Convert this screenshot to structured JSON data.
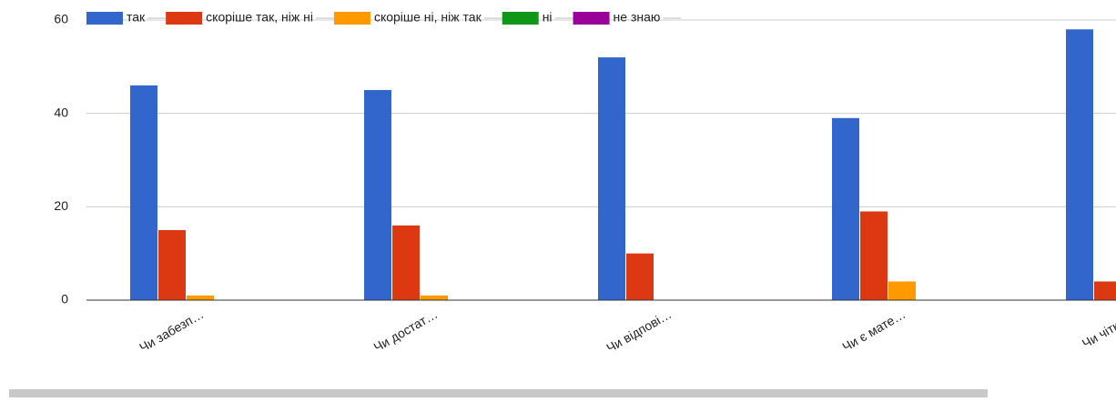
{
  "chart_data": {
    "type": "bar",
    "categories": [
      "Чи забезп…",
      "Чи достат…",
      "Чи відпові…",
      "Чи є мате…",
      "Чи чітко …"
    ],
    "series": [
      {
        "name": "так",
        "color": "#3366cc",
        "values": [
          46,
          45,
          52,
          39,
          58
        ]
      },
      {
        "name": "скоріше так, ніж ні",
        "color": "#dc3912",
        "values": [
          15,
          16,
          10,
          19,
          4
        ]
      },
      {
        "name": "скоріше ні, ніж так",
        "color": "#ff9900",
        "values": [
          1,
          1,
          0,
          4,
          0
        ]
      },
      {
        "name": "ні",
        "color": "#109618",
        "values": [
          0,
          0,
          0,
          0,
          0
        ]
      },
      {
        "name": "не знаю",
        "color": "#990099",
        "values": [
          0,
          0,
          0,
          0,
          0
        ]
      }
    ],
    "ylim": [
      0,
      60
    ],
    "yticks": [
      0,
      20,
      40,
      60
    ],
    "grid": true,
    "legend": "top"
  }
}
